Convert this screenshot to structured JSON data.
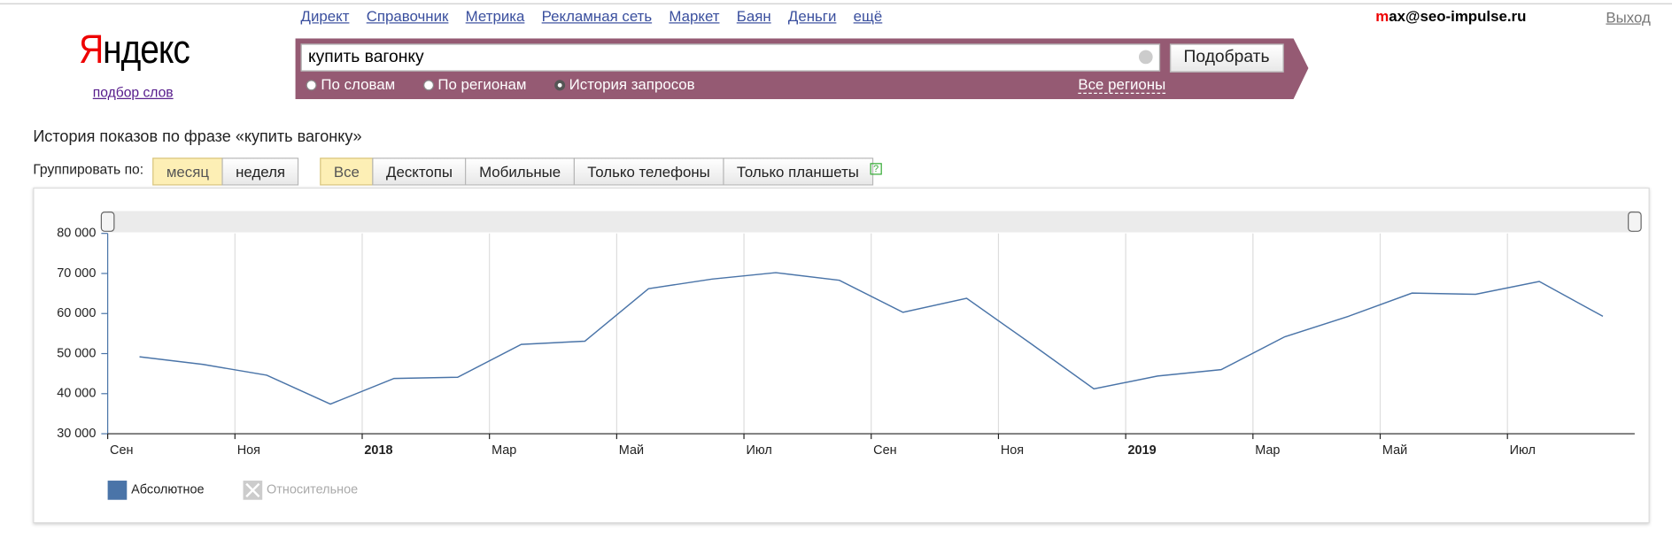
{
  "header": {
    "nav": [
      "Директ",
      "Справочник",
      "Метрика",
      "Рекламная сеть",
      "Маркет",
      "Баян",
      "Деньги",
      "ещё"
    ],
    "user_first": "m",
    "user_rest": "ax@seo-impulse.ru",
    "logout": "Выход",
    "logo_first": "Я",
    "logo_rest": "ндекс",
    "logo_sub": "подбор слов"
  },
  "search": {
    "query": "купить вагонку",
    "button": "Подобрать",
    "modes": [
      "По словам",
      "По регионам",
      "История запросов"
    ],
    "selected_mode": 2,
    "regions": "Все регионы"
  },
  "heading": "История показов по фразе «купить вагонку»",
  "group_label": "Группировать по:",
  "group_buttons": [
    "месяц",
    "неделя"
  ],
  "group_active": 0,
  "device_buttons": [
    "Все",
    "Десктопы",
    "Мобильные",
    "Только телефоны",
    "Только планшеты"
  ],
  "device_active": 0,
  "help": "?",
  "legend_disabled": "Относительное",
  "chart_data": {
    "type": "line",
    "categories": [
      "Сен",
      null,
      "Ноя",
      null,
      "2018",
      null,
      "Мар",
      null,
      "Май",
      null,
      "Июл",
      null,
      "Сен",
      null,
      "Ноя",
      null,
      "2019",
      null,
      "Мар",
      null,
      "Май",
      null,
      "Июл",
      null
    ],
    "series": [
      {
        "name": "Абсолютное",
        "color": "#4a74a8",
        "values": [
          49200,
          47300,
          44600,
          37400,
          43800,
          44100,
          52300,
          53100,
          66200,
          68600,
          70200,
          68300,
          60300,
          63800,
          52600,
          41200,
          44400,
          46000,
          54200,
          59300,
          65100,
          64800,
          68000,
          59300
        ]
      }
    ],
    "ylim": [
      30000,
      80000
    ],
    "yticks": [
      {
        "value": 30000,
        "label": "30 000"
      },
      {
        "value": 40000,
        "label": "40 000"
      },
      {
        "value": 50000,
        "label": "50 000"
      },
      {
        "value": 60000,
        "label": "60 000"
      },
      {
        "value": 70000,
        "label": "70 000"
      },
      {
        "value": 80000,
        "label": "80 000"
      }
    ],
    "grid": true
  }
}
